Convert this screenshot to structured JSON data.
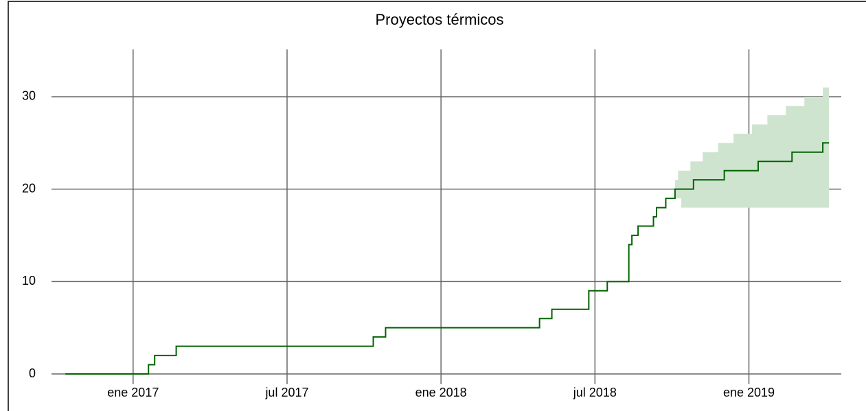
{
  "chart_data": {
    "type": "step",
    "title": "Proyectos térmicos",
    "xlim": [
      2016.735,
      2019.3
    ],
    "ylim": [
      0,
      35
    ],
    "xticks": [
      {
        "value": 2017,
        "label": "ene 2017"
      },
      {
        "value": 2017.5,
        "label": "jul 2017"
      },
      {
        "value": 2018,
        "label": "ene 2018"
      },
      {
        "value": 2018.5,
        "label": "jul 2018"
      },
      {
        "value": 2019,
        "label": "ene 2019"
      }
    ],
    "yticks": [
      0,
      10,
      20,
      30
    ],
    "grid": true,
    "series": [
      {
        "color": "#006400",
        "x": [
          2016.78,
          2017.05,
          2017.07,
          2017.14,
          2017.78,
          2017.82,
          2018.32,
          2018.36,
          2018.48,
          2018.54,
          2018.61,
          2018.62,
          2018.64,
          2018.69,
          2018.7,
          2018.73,
          2018.76,
          2018.82,
          2018.92,
          2019.03,
          2019.14,
          2019.24,
          2019.26
        ],
        "values": [
          0,
          1,
          2,
          3,
          4,
          5,
          6,
          7,
          9,
          10,
          14,
          15,
          16,
          17,
          18,
          19,
          20,
          21,
          22,
          23,
          24,
          25,
          25
        ]
      }
    ],
    "band": {
      "color": "#cfe4cf",
      "x": [
        2018.76,
        2018.77,
        2018.78,
        2018.81,
        2018.85,
        2018.9,
        2018.95,
        2019.01,
        2019.06,
        2019.12,
        2019.18,
        2019.24,
        2019.26
      ],
      "lower": [
        19,
        19,
        18,
        18,
        18,
        18,
        18,
        18,
        18,
        18,
        18,
        18,
        18
      ],
      "upper": [
        21,
        22,
        22,
        23,
        24,
        25,
        26,
        27,
        28,
        29,
        30,
        31,
        31
      ]
    }
  }
}
